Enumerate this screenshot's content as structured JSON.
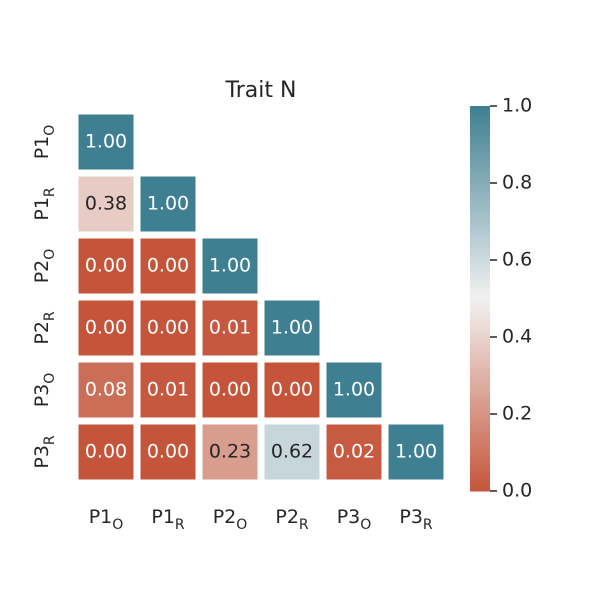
{
  "chart_data": {
    "type": "heatmap",
    "title": "Trait N",
    "x_labels": [
      [
        "P1",
        "O"
      ],
      [
        "P1",
        "R"
      ],
      [
        "P2",
        "O"
      ],
      [
        "P2",
        "R"
      ],
      [
        "P3",
        "O"
      ],
      [
        "P3",
        "R"
      ]
    ],
    "y_labels": [
      [
        "P1",
        "O"
      ],
      [
        "P1",
        "R"
      ],
      [
        "P2",
        "O"
      ],
      [
        "P2",
        "R"
      ],
      [
        "P3",
        "O"
      ],
      [
        "P3",
        "R"
      ]
    ],
    "values": [
      [
        1,
        null,
        null,
        null,
        null,
        null
      ],
      [
        0.38,
        1,
        null,
        null,
        null,
        null
      ],
      [
        0,
        0,
        1,
        null,
        null,
        null
      ],
      [
        0,
        0,
        0.01,
        1,
        null,
        null
      ],
      [
        0.08,
        0.01,
        0,
        0,
        1,
        null
      ],
      [
        0,
        0,
        0.23,
        0.62,
        0.02,
        1
      ]
    ],
    "value_labels": [
      [
        "1.00",
        null,
        null,
        null,
        null,
        null
      ],
      [
        "0.38",
        "1.00",
        null,
        null,
        null,
        null
      ],
      [
        "0.00",
        "0.00",
        "1.00",
        null,
        null,
        null
      ],
      [
        "0.00",
        "0.00",
        "0.01",
        "1.00",
        null,
        null
      ],
      [
        "0.08",
        "0.01",
        "0.00",
        "0.00",
        "1.00",
        null
      ],
      [
        "0.00",
        "0.00",
        "0.23",
        "0.62",
        "0.02",
        "1.00"
      ]
    ],
    "colormap": [
      "#c4553a",
      "#f2f1f1",
      "#3e7f92"
    ],
    "zlim": [
      0,
      1
    ],
    "zticks": [
      {
        "value": 0,
        "label": "0.0"
      },
      {
        "value": 0.2,
        "label": "0.2"
      },
      {
        "value": 0.4,
        "label": "0.4"
      },
      {
        "value": 0.6,
        "label": "0.6"
      },
      {
        "value": 0.8,
        "label": "0.8"
      },
      {
        "value": 1,
        "label": "1.0"
      }
    ]
  }
}
